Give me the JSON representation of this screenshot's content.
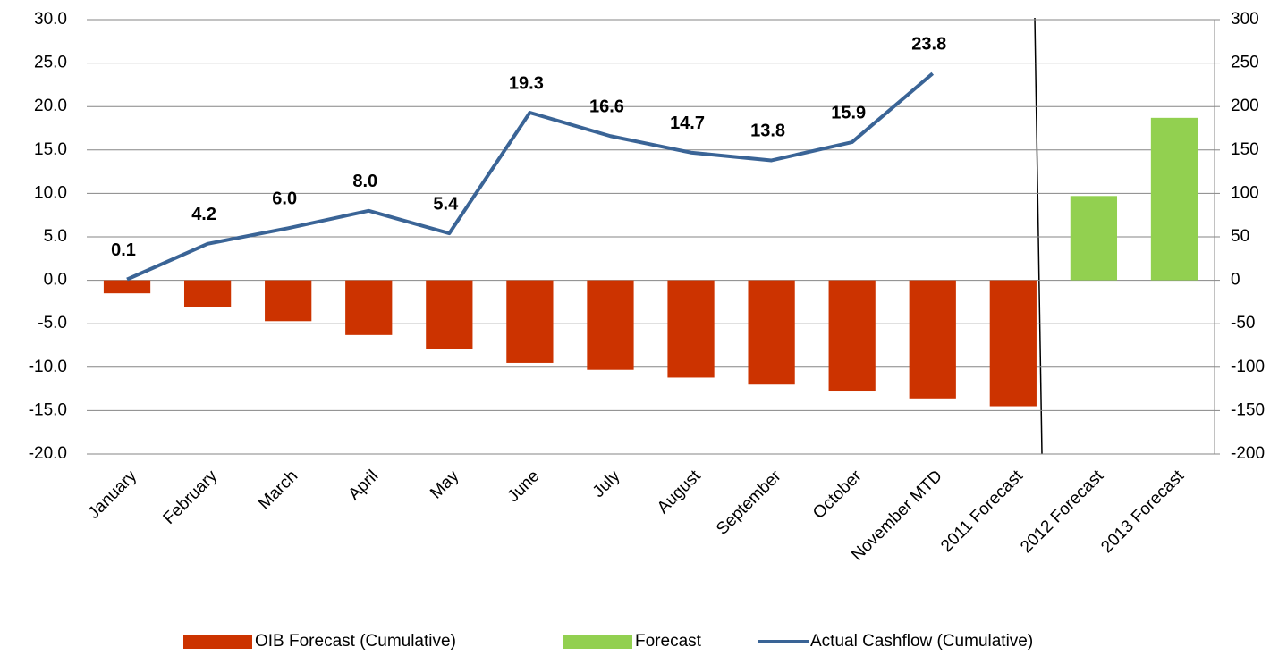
{
  "chart_data": {
    "type": "bar-line",
    "categories": [
      "January",
      "February",
      "March",
      "April",
      "May",
      "June",
      "July",
      "August",
      "September",
      "October",
      "November MTD",
      "2011 Forecast",
      "2012 Forecast",
      "2013 Forecast"
    ],
    "series": [
      {
        "name": "OIB Forecast (Cumulative)",
        "type": "bar",
        "axis": "y2",
        "color": "#cc3300",
        "values": [
          -15,
          -31,
          -47,
          -63,
          -79,
          -95,
          -103,
          -112,
          -120,
          -128,
          -136,
          -145,
          null,
          null
        ]
      },
      {
        "name": "Forecast",
        "type": "bar",
        "axis": "y2",
        "color": "#92d050",
        "values": [
          null,
          null,
          null,
          null,
          null,
          null,
          null,
          null,
          null,
          null,
          null,
          null,
          97,
          187
        ]
      },
      {
        "name": "Actual Cashflow (Cumulative)",
        "type": "line",
        "color": "#3a6496",
        "values": [
          0.1,
          4.2,
          6.0,
          8.0,
          5.4,
          19.3,
          16.6,
          14.7,
          13.8,
          15.9,
          23.8,
          null,
          null,
          null
        ],
        "value_labels": [
          "0.1",
          "4.2",
          "6.0",
          "8.0",
          "5.4",
          "19.3",
          "16.6",
          "14.7",
          "13.8",
          "15.9",
          "23.8",
          null,
          null,
          null
        ]
      }
    ],
    "ylim": [
      -20,
      30
    ],
    "yticks": [
      {
        "value": -20,
        "label": "-20.0"
      },
      {
        "value": -15,
        "label": "-15.0"
      },
      {
        "value": -10,
        "label": "-10.0"
      },
      {
        "value": -5,
        "label": "-5.0"
      },
      {
        "value": 0,
        "label": "0.0"
      },
      {
        "value": 5,
        "label": "5.0"
      },
      {
        "value": 10,
        "label": "10.0"
      },
      {
        "value": 15,
        "label": "15.0"
      },
      {
        "value": 20,
        "label": "20.0"
      },
      {
        "value": 25,
        "label": "25.0"
      },
      {
        "value": 30,
        "label": "30.0"
      }
    ],
    "y2lim": [
      -200,
      300
    ],
    "y2ticks": [
      -200,
      -150,
      -100,
      -50,
      0,
      50,
      100,
      150,
      200,
      250,
      300
    ],
    "grid": true,
    "legend": "bottom"
  }
}
